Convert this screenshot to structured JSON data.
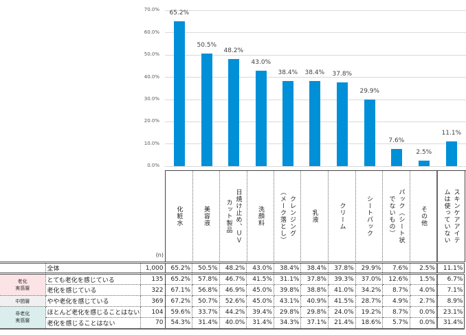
{
  "chart_data": {
    "type": "bar",
    "title": "",
    "xlabel": "",
    "ylabel": "",
    "ylim": [
      0,
      70
    ],
    "yticks": [
      "0.0%",
      "10.0%",
      "20.0%",
      "30.0%",
      "40.0%",
      "50.0%",
      "60.0%",
      "70.0%"
    ],
    "grid": true,
    "categories": [
      "化粧水",
      "美容液",
      "日焼け止め、UVカット製品",
      "洗顔料",
      "クレンジング（メーク落とし）",
      "乳液",
      "クリーム",
      "シートパック",
      "パック（シート状でないもの）",
      "その他",
      "スキンケアアイテムは使っていない"
    ],
    "values": [
      65.2,
      50.5,
      48.2,
      43.0,
      38.4,
      38.4,
      37.8,
      29.9,
      7.6,
      2.5,
      11.1
    ],
    "value_labels": [
      "65.2%",
      "50.5%",
      "48.2%",
      "43.0%",
      "38.4%",
      "38.4%",
      "37.8%",
      "29.9%",
      "7.6%",
      "2.5%",
      "11.1%"
    ],
    "color": "#0090d8"
  },
  "header": {
    "n_label": "(n)",
    "columns": [
      [
        "化粧水"
      ],
      [
        "美容液"
      ],
      [
        "日焼け止め、ＵＶ",
        "カット製品"
      ],
      [
        "洗顔料"
      ],
      [
        "クレンジング",
        "（メーク落とし）"
      ],
      [
        "乳液"
      ],
      [
        "クリーム"
      ],
      [
        "シートパック"
      ],
      [
        "パック（シート状",
        "でないもの）"
      ],
      [
        "その他"
      ],
      [
        "スキンケアアイテ",
        "ムは使っていない"
      ]
    ]
  },
  "table": {
    "rows": [
      {
        "group": "",
        "label": "全体",
        "n": "1,000",
        "values": [
          "65.2%",
          "50.5%",
          "48.2%",
          "43.0%",
          "38.4%",
          "38.4%",
          "37.8%",
          "29.9%",
          "7.6%",
          "2.5%",
          "11.1%"
        ]
      },
      {
        "group": "老化実感層",
        "label": "とても老化を感じている",
        "n": "135",
        "values": [
          "65.2%",
          "57.8%",
          "46.7%",
          "41.5%",
          "31.1%",
          "37.8%",
          "39.3%",
          "37.0%",
          "12.6%",
          "1.5%",
          "6.7%"
        ]
      },
      {
        "group": "老化実感層",
        "label": "老化を感じている",
        "n": "322",
        "values": [
          "67.1%",
          "56.8%",
          "46.9%",
          "45.0%",
          "39.8%",
          "38.8%",
          "41.0%",
          "34.2%",
          "8.7%",
          "4.0%",
          "7.1%"
        ]
      },
      {
        "group": "中間層",
        "label": "やや老化を感じている",
        "n": "369",
        "values": [
          "67.2%",
          "50.7%",
          "52.6%",
          "45.0%",
          "43.1%",
          "40.9%",
          "41.5%",
          "28.7%",
          "4.9%",
          "2.7%",
          "8.9%"
        ]
      },
      {
        "group": "非老化実感層",
        "label": "ほとんど老化を感じることはない",
        "n": "104",
        "values": [
          "59.6%",
          "33.7%",
          "44.2%",
          "39.4%",
          "29.8%",
          "29.8%",
          "24.0%",
          "19.2%",
          "8.7%",
          "0.0%",
          "23.1%"
        ]
      },
      {
        "group": "非老化実感層",
        "label": "老化を感じることはない",
        "n": "70",
        "values": [
          "54.3%",
          "31.4%",
          "40.0%",
          "31.4%",
          "34.3%",
          "37.1%",
          "21.4%",
          "18.6%",
          "5.7%",
          "0.0%",
          "31.4%"
        ]
      }
    ],
    "groups": {
      "aging": [
        "老化",
        "実感層"
      ],
      "middle": "中間層",
      "non_aging": [
        "非老化",
        "実感層"
      ]
    }
  }
}
